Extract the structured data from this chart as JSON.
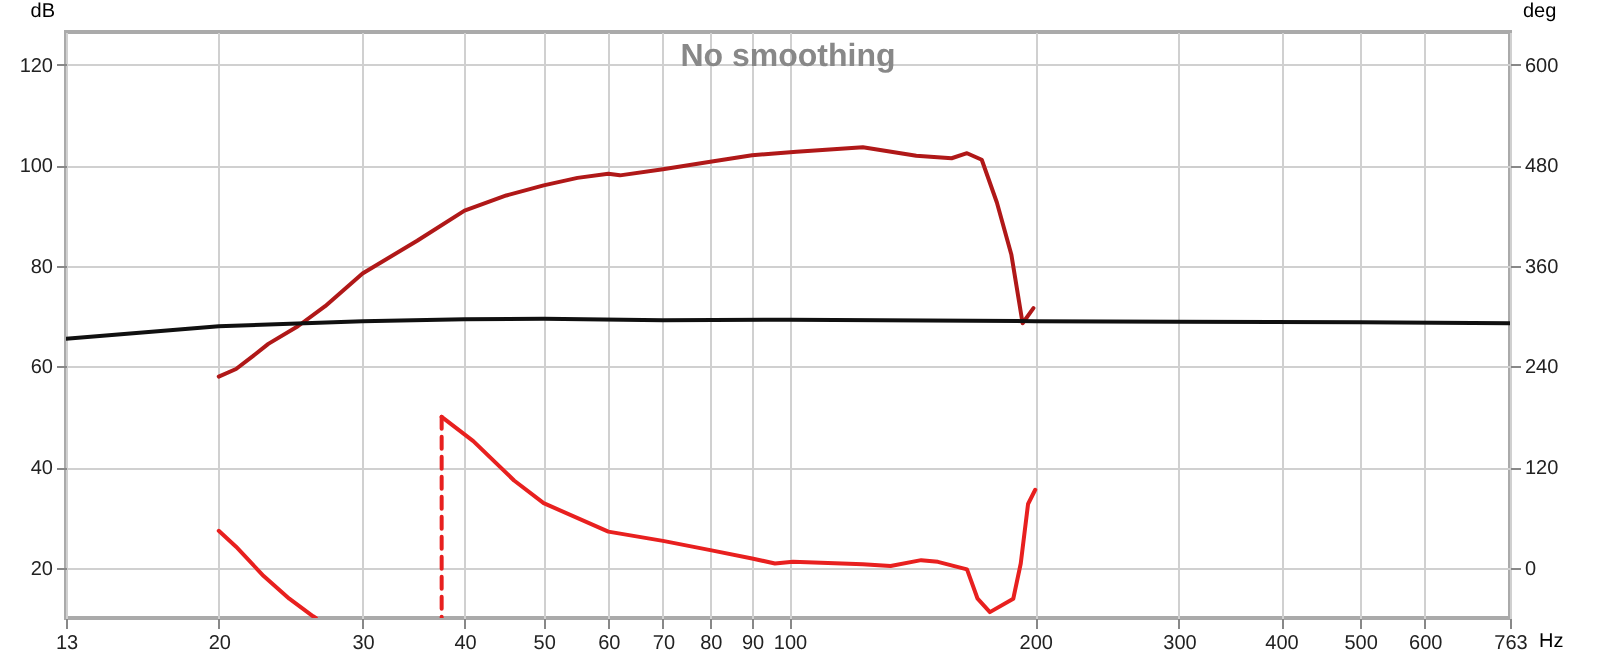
{
  "chart_data": {
    "type": "line",
    "title": "No smoothing",
    "xlabel": "Hz",
    "ylabel": "dB",
    "y2label": "deg",
    "log": "x",
    "grid": true,
    "line_style": "solid",
    "marker": "none",
    "xlim": [
      13,
      763
    ],
    "xticks": [
      13,
      20,
      30,
      40,
      50,
      60,
      70,
      80,
      90,
      100,
      200,
      300,
      400,
      500,
      600,
      763
    ],
    "ylim": [
      10,
      126.5
    ],
    "yticks": [
      20,
      40,
      60,
      80,
      100,
      120
    ],
    "y2lim": [
      -60,
      639
    ],
    "y2ticks": [
      0,
      120,
      240,
      360,
      480,
      600
    ],
    "series": [
      {
        "color": "#b01818",
        "x": [
          20,
          21,
          22,
          23,
          25,
          27,
          30,
          35,
          40,
          45,
          50,
          55,
          60,
          62,
          70,
          80,
          90,
          95,
          102,
          123,
          143,
          158,
          165,
          172,
          179.5,
          187,
          193,
          199
        ],
        "values": [
          58,
          59.5,
          62,
          64.5,
          68,
          72,
          78.5,
          85,
          91,
          94,
          96,
          97.5,
          98.3,
          98,
          99.2,
          100.7,
          102,
          102.3,
          102.7,
          103.6,
          101.9,
          101.4,
          102.4,
          101.1,
          92.6,
          82.2,
          68.6,
          71.6
        ]
      },
      {
        "color": "#101010",
        "x": [
          13,
          20,
          30,
          40,
          50,
          70,
          100,
          200,
          300,
          500,
          763
        ],
        "values": [
          65.5,
          68,
          69,
          69.4,
          69.5,
          69.2,
          69.3,
          69,
          68.9,
          68.8,
          68.6
        ]
      },
      {
        "color": "#e8201f",
        "axis": "y2",
        "x": [
          20,
          21,
          22.7,
          24.4,
          26.1,
          26.3,
          30,
          37.5,
          41,
          46,
          50,
          60,
          70,
          80,
          90,
          96,
          101,
          123,
          133,
          145,
          152,
          165,
          170,
          176,
          188,
          192,
          196,
          200
        ],
        "values": [
          44,
          25,
          -10,
          -37,
          -58,
          -60,
          null,
          180,
          151,
          104,
          77,
          43,
          32,
          21,
          11,
          5,
          7,
          4,
          2,
          9,
          7,
          -2,
          -37,
          -53,
          -37,
          5,
          76,
          93
        ]
      },
      {
        "color": "#e8201f",
        "axis": "y2",
        "line_style": "dashed",
        "x": [
          37.5,
          37.5
        ],
        "values": [
          180,
          -60
        ]
      }
    ]
  }
}
